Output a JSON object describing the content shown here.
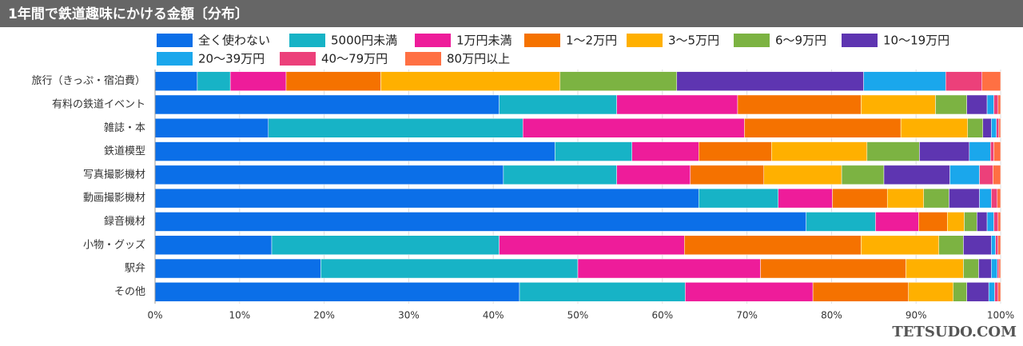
{
  "chart_data": {
    "type": "bar",
    "orientation": "horizontal",
    "stacked": true,
    "title": "1年間で鉄道趣味にかける金額〔分布〕",
    "categories": [
      "旅行（きっぷ・宿泊費）",
      "有料の鉄道イベント",
      "雑誌・本",
      "鉄道模型",
      "写真撮影機材",
      "動画撮影機材",
      "録音機材",
      "小物・グッズ",
      "駅弁",
      "その他"
    ],
    "series": [
      {
        "name": "全く使わない",
        "color": "#0b6fe8",
        "values": [
          5.0,
          40.7,
          13.4,
          47.3,
          41.2,
          64.3,
          77.0,
          13.8,
          19.6,
          43.1
        ]
      },
      {
        "name": "5000円未満",
        "color": "#17b3c6",
        "values": [
          3.9,
          13.9,
          30.1,
          9.1,
          13.4,
          9.4,
          8.2,
          26.9,
          30.4,
          19.6
        ]
      },
      {
        "name": "1万円未満",
        "color": "#ee1c9a",
        "values": [
          6.6,
          14.3,
          26.2,
          7.9,
          8.7,
          6.4,
          5.1,
          21.9,
          21.6,
          15.1
        ]
      },
      {
        "name": "1〜2万円",
        "color": "#f57200",
        "values": [
          11.2,
          14.6,
          18.5,
          8.6,
          8.7,
          6.5,
          3.4,
          20.9,
          17.2,
          11.3
        ]
      },
      {
        "name": "3〜5万円",
        "color": "#ffb000",
        "values": [
          21.2,
          8.8,
          7.9,
          11.3,
          9.2,
          4.3,
          2.0,
          9.2,
          6.8,
          5.3
        ]
      },
      {
        "name": "6〜9万円",
        "color": "#7cb342",
        "values": [
          13.8,
          3.7,
          1.8,
          6.2,
          5.0,
          3.0,
          1.5,
          2.9,
          1.8,
          1.6
        ]
      },
      {
        "name": "10〜19万円",
        "color": "#5e35b1",
        "values": [
          22.1,
          2.4,
          1.0,
          5.9,
          7.8,
          3.6,
          1.2,
          3.3,
          1.5,
          2.6
        ]
      },
      {
        "name": "20〜39万円",
        "color": "#1aa7ec",
        "values": [
          9.7,
          0.8,
          0.6,
          2.5,
          3.5,
          1.4,
          0.8,
          0.5,
          0.7,
          0.7
        ]
      },
      {
        "name": "40〜79万円",
        "color": "#ec407a",
        "values": [
          4.3,
          0.5,
          0.3,
          0.4,
          1.6,
          0.7,
          0.5,
          0.3,
          0.2,
          0.4
        ]
      },
      {
        "name": "80万円以上",
        "color": "#ff7043",
        "values": [
          2.2,
          0.3,
          0.2,
          0.8,
          0.9,
          0.4,
          0.3,
          0.3,
          0.2,
          0.3
        ]
      }
    ],
    "xlim": [
      0,
      100
    ],
    "xticks": [
      {
        "value": 0,
        "label": "0%"
      },
      {
        "value": 10,
        "label": "10%"
      },
      {
        "value": 20,
        "label": "20%"
      },
      {
        "value": 30,
        "label": "30%"
      },
      {
        "value": 40,
        "label": "40%"
      },
      {
        "value": 50,
        "label": "50%"
      },
      {
        "value": 60,
        "label": "60%"
      },
      {
        "value": 70,
        "label": "70%"
      },
      {
        "value": 80,
        "label": "80%"
      },
      {
        "value": 90,
        "label": "90%"
      },
      {
        "value": 100,
        "label": "100%"
      }
    ],
    "grid": true
  },
  "watermark": "TETSUDO.COM"
}
